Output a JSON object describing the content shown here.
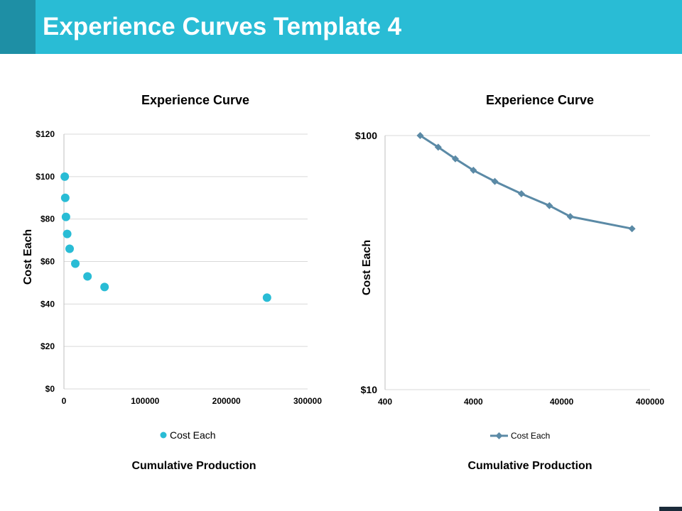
{
  "page": {
    "title": "Experience Curves Template 4"
  },
  "colors": {
    "header": "#29bcd5",
    "header_accent": "#1e8fa5",
    "scatter_marker": "#29bcd5",
    "line_series": "#5b8aa6",
    "gridline": "#d9d9d9",
    "axis": "#bfbfbf"
  },
  "chart_data": [
    {
      "type": "scatter",
      "title": "Experience Curve",
      "xlabel": "Cumulative Production",
      "ylabel": "Cost Each",
      "xlim": [
        0,
        300000
      ],
      "ylim": [
        0,
        120
      ],
      "grid": true,
      "legend_position": "bottom",
      "x_tick_labels": [
        "0",
        "100000",
        "200000",
        "300000"
      ],
      "y_tick_labels": [
        "$0",
        "$20",
        "$40",
        "$60",
        "$80",
        "$100",
        "$120"
      ],
      "series": [
        {
          "name": "Cost Each",
          "x": [
            1000,
            1600,
            2500,
            4000,
            7000,
            14000,
            29000,
            50000,
            250000
          ],
          "y": [
            100,
            90,
            81,
            73,
            66,
            59,
            53,
            48,
            43
          ]
        }
      ]
    },
    {
      "type": "line",
      "title": "Experience Curve",
      "xlabel": "Cumulative Production",
      "ylabel": "Cost Each",
      "x_scale": "log",
      "y_scale": "log",
      "xlim": [
        400,
        400000
      ],
      "ylim": [
        10,
        100
      ],
      "grid": true,
      "legend_position": "bottom",
      "x_tick_labels": [
        "400",
        "4000",
        "40000",
        "400000"
      ],
      "y_tick_labels": [
        "$10",
        "$100"
      ],
      "series": [
        {
          "name": "Cost Each",
          "x": [
            1000,
            1600,
            2500,
            4000,
            7000,
            14000,
            29000,
            50000,
            250000
          ],
          "y": [
            100,
            90,
            81,
            73,
            66,
            59,
            53,
            48,
            43
          ]
        }
      ]
    }
  ]
}
